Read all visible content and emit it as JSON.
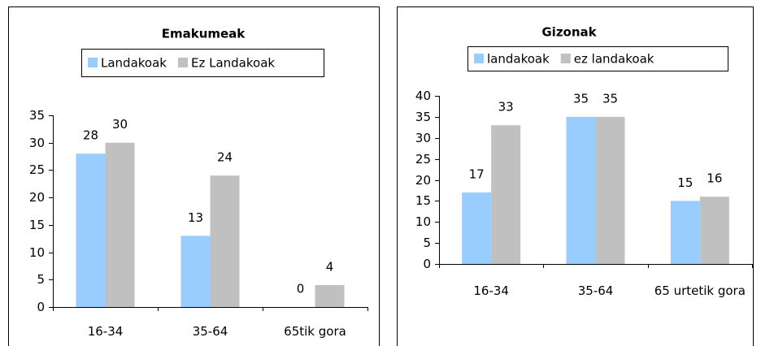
{
  "chart_data": [
    {
      "type": "bar",
      "title": "Emakumeak",
      "categories": [
        "16-34",
        "35-64",
        "65tik gora"
      ],
      "series": [
        {
          "name": "Landakoak",
          "color": "#99ccff",
          "values": [
            28,
            13,
            0
          ]
        },
        {
          "name": "Ez Landakoak",
          "color": "#c0c0c0",
          "values": [
            30,
            24,
            4
          ]
        }
      ],
      "ylim": [
        0,
        35
      ],
      "yticks": [
        0,
        5,
        10,
        15,
        20,
        25,
        30,
        35
      ]
    },
    {
      "type": "bar",
      "title": "Gizonak",
      "categories": [
        "16-34",
        "35-64",
        "65 urtetik gora"
      ],
      "series": [
        {
          "name": "landakoak",
          "color": "#99ccff",
          "values": [
            17,
            35,
            15
          ]
        },
        {
          "name": "ez landakoak",
          "color": "#c0c0c0",
          "values": [
            33,
            35,
            16
          ]
        }
      ],
      "ylim": [
        0,
        40
      ],
      "yticks": [
        0,
        5,
        10,
        15,
        20,
        25,
        30,
        35,
        40
      ]
    }
  ]
}
